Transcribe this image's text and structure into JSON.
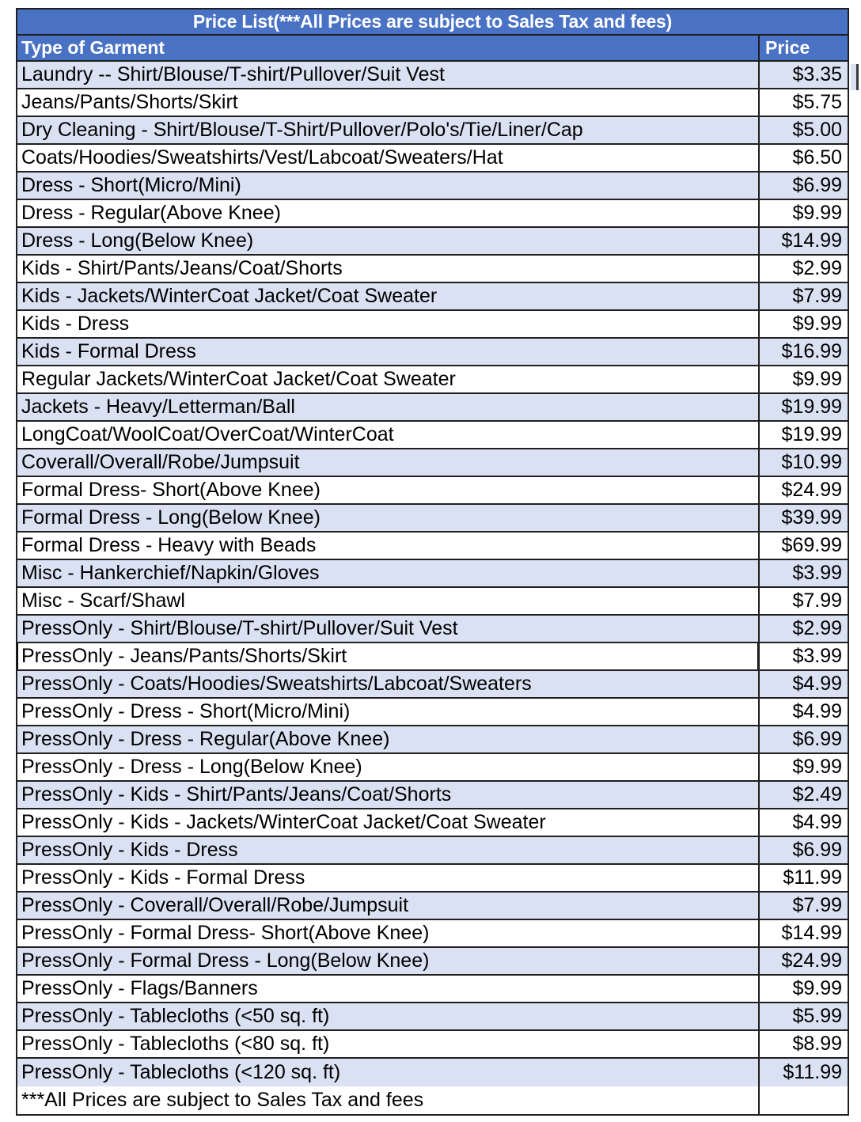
{
  "title": "Price List(***All Prices are subject to Sales Tax and fees)",
  "columns": {
    "garment": "Type of Garment",
    "price": "Price"
  },
  "table": {
    "selected_row_index": 21,
    "rows": [
      {
        "garment": "Laundry -- Shirt/Blouse/T-shirt/Pullover/Suit Vest",
        "price": "$3.35"
      },
      {
        "garment": "Jeans/Pants/Shorts/Skirt",
        "price": "$5.75"
      },
      {
        "garment": "Dry Cleaning - Shirt/Blouse/T-Shirt/Pullover/Polo's/Tie/Liner/Cap",
        "price": "$5.00"
      },
      {
        "garment": "Coats/Hoodies/Sweatshirts/Vest/Labcoat/Sweaters/Hat",
        "price": "$6.50"
      },
      {
        "garment": "Dress - Short(Micro/Mini)",
        "price": "$6.99"
      },
      {
        "garment": "Dress - Regular(Above Knee)",
        "price": "$9.99"
      },
      {
        "garment": "Dress - Long(Below Knee)",
        "price": "$14.99"
      },
      {
        "garment": "Kids - Shirt/Pants/Jeans/Coat/Shorts",
        "price": "$2.99"
      },
      {
        "garment": "Kids - Jackets/WinterCoat Jacket/Coat Sweater",
        "price": "$7.99"
      },
      {
        "garment": "Kids - Dress",
        "price": "$9.99"
      },
      {
        "garment": "Kids - Formal Dress",
        "price": "$16.99"
      },
      {
        "garment": "Regular Jackets/WinterCoat Jacket/Coat Sweater",
        "price": "$9.99"
      },
      {
        "garment": "Jackets - Heavy/Letterman/Ball",
        "price": "$19.99"
      },
      {
        "garment": "LongCoat/WoolCoat/OverCoat/WinterCoat",
        "price": "$19.99"
      },
      {
        "garment": "Coverall/Overall/Robe/Jumpsuit",
        "price": "$10.99"
      },
      {
        "garment": "Formal Dress- Short(Above Knee)",
        "price": "$24.99"
      },
      {
        "garment": "Formal Dress - Long(Below Knee)",
        "price": "$39.99"
      },
      {
        "garment": "Formal Dress - Heavy with Beads",
        "price": "$69.99"
      },
      {
        "garment": "Misc - Hankerchief/Napkin/Gloves",
        "price": "$3.99"
      },
      {
        "garment": "Misc - Scarf/Shawl",
        "price": "$7.99"
      },
      {
        "garment": "PressOnly - Shirt/Blouse/T-shirt/Pullover/Suit Vest",
        "price": "$2.99"
      },
      {
        "garment": "PressOnly - Jeans/Pants/Shorts/Skirt",
        "price": "$3.99"
      },
      {
        "garment": "PressOnly - Coats/Hoodies/Sweatshirts/Labcoat/Sweaters",
        "price": "$4.99"
      },
      {
        "garment": "PressOnly - Dress - Short(Micro/Mini)",
        "price": "$4.99"
      },
      {
        "garment": "PressOnly - Dress - Regular(Above Knee)",
        "price": "$6.99"
      },
      {
        "garment": "PressOnly - Dress - Long(Below Knee)",
        "price": "$9.99"
      },
      {
        "garment": "PressOnly - Kids - Shirt/Pants/Jeans/Coat/Shorts",
        "price": "$2.49"
      },
      {
        "garment": "PressOnly - Kids - Jackets/WinterCoat Jacket/Coat Sweater",
        "price": "$4.99"
      },
      {
        "garment": "PressOnly - Kids - Dress",
        "price": "$6.99"
      },
      {
        "garment": "PressOnly - Kids - Formal Dress",
        "price": "$11.99"
      },
      {
        "garment": "PressOnly - Coverall/Overall/Robe/Jumpsuit",
        "price": "$7.99"
      },
      {
        "garment": "PressOnly - Formal Dress- Short(Above Knee)",
        "price": "$14.99"
      },
      {
        "garment": "PressOnly - Formal Dress - Long(Below Knee)",
        "price": "$24.99"
      },
      {
        "garment": "PressOnly - Flags/Banners",
        "price": "$9.99"
      },
      {
        "garment": "PressOnly - Tablecloths (<50 sq. ft)",
        "price": "$5.99"
      },
      {
        "garment": "PressOnly - Tablecloths (<80 sq. ft)",
        "price": "$8.99"
      },
      {
        "garment": "PressOnly - Tablecloths (<120 sq. ft)",
        "price": "$11.99"
      }
    ]
  },
  "footer": {
    "note": "***All Prices are subject to Sales Tax and fees",
    "price": ""
  },
  "colors": {
    "header-blue": "#4a72c4",
    "row-alt": "#d9e1f2",
    "row-white": "#ffffff",
    "border": "#1f1f1f",
    "selection": "#000000",
    "text": "#000000",
    "header-text": "#ffffff"
  }
}
